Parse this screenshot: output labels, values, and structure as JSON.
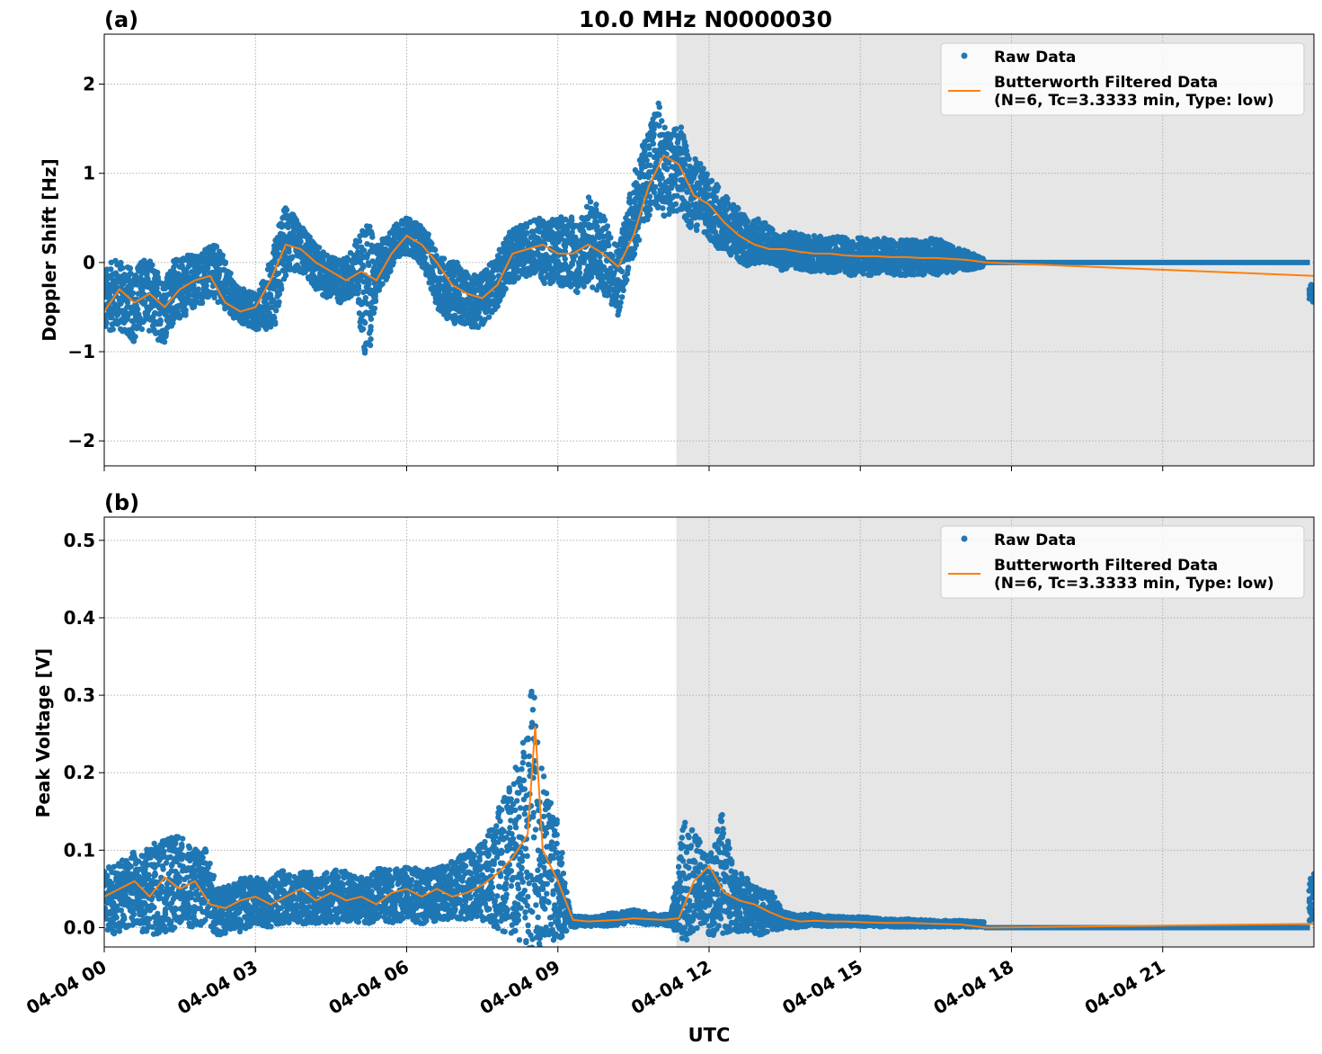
{
  "figure": {
    "title": "10.0 MHz N0000030",
    "xlabel": "UTC"
  },
  "chart_data": [
    {
      "type": "scatter",
      "panel_label": "(a)",
      "ylabel": "Doppler Shift [Hz]",
      "xlim_hours": [
        0,
        24
      ],
      "ylim": [
        -2.28,
        2.56
      ],
      "yticks": [
        -2,
        -1,
        0,
        1,
        2
      ],
      "yticklabels": [
        "−2",
        "−1",
        "0",
        "1",
        "2"
      ],
      "xticks_hours": [
        0,
        3,
        6,
        9,
        12,
        15,
        18,
        21
      ],
      "xticklabels": [],
      "grid": true,
      "legend_position": "top-right",
      "shaded_region_hours": [
        11.35,
        24
      ],
      "colors": {
        "raw": "#1f77b4",
        "filtered": "#ff7f0e",
        "shade": "#e6e6e6"
      },
      "series": [
        {
          "name": "Raw Data",
          "kind": "points",
          "x_hours": [
            0.0,
            0.2,
            0.4,
            0.6,
            0.8,
            1.0,
            1.2,
            1.4,
            1.6,
            1.8,
            2.0,
            2.2,
            2.4,
            2.6,
            2.8,
            3.0,
            3.2,
            3.4,
            3.6,
            3.8,
            4.0,
            4.2,
            4.4,
            4.6,
            4.8,
            5.0,
            5.2,
            5.4,
            5.6,
            5.8,
            6.0,
            6.2,
            6.4,
            6.6,
            6.8,
            7.0,
            7.2,
            7.4,
            7.6,
            7.8,
            8.0,
            8.2,
            8.4,
            8.6,
            8.8,
            9.0,
            9.2,
            9.4,
            9.6,
            9.8,
            10.0,
            10.2,
            10.4,
            10.6,
            10.8,
            11.0,
            11.2,
            11.4,
            11.6,
            11.8,
            12.0,
            12.2,
            12.4,
            12.6,
            12.8,
            13.0,
            13.2,
            13.4,
            13.6,
            13.8,
            14.0,
            14.2,
            14.4,
            14.6,
            14.8,
            15.0,
            15.2,
            15.4,
            15.6,
            15.8,
            16.0,
            16.2,
            16.4,
            16.6,
            16.8,
            17.0,
            17.2,
            17.4,
            18.0,
            19.0,
            20.0,
            21.0,
            22.0,
            23.0,
            24.0
          ],
          "y": [
            -0.45,
            -0.35,
            -0.4,
            -0.5,
            -0.3,
            -0.45,
            -0.55,
            -0.3,
            -0.25,
            -0.2,
            -0.15,
            -0.1,
            -0.25,
            -0.45,
            -0.5,
            -0.55,
            -0.45,
            -0.2,
            0.25,
            0.2,
            0.1,
            -0.05,
            -0.15,
            -0.2,
            -0.2,
            -0.05,
            -0.4,
            -0.1,
            0.05,
            0.25,
            0.3,
            0.25,
            0.1,
            -0.2,
            -0.3,
            -0.35,
            -0.4,
            -0.45,
            -0.35,
            -0.2,
            0.05,
            0.1,
            0.15,
            0.2,
            0.1,
            0.1,
            0.15,
            0.05,
            0.25,
            0.15,
            0.0,
            -0.2,
            0.3,
            0.7,
            1.0,
            1.2,
            0.95,
            1.1,
            0.8,
            0.75,
            0.6,
            0.5,
            0.4,
            0.3,
            0.2,
            0.25,
            0.2,
            0.1,
            0.15,
            0.12,
            0.1,
            0.1,
            0.08,
            0.1,
            0.05,
            0.08,
            0.05,
            0.08,
            0.06,
            0.06,
            0.05,
            0.05,
            0.08,
            0.05,
            0.04,
            0.03,
            0.02,
            0.0,
            0.0,
            0.0,
            0.0,
            0.0,
            0.0,
            0.0,
            -0.35
          ],
          "spread": [
            0.35,
            0.4,
            0.4,
            0.4,
            0.4,
            0.4,
            0.35,
            0.35,
            0.35,
            0.3,
            0.3,
            0.3,
            0.3,
            0.2,
            0.2,
            0.2,
            0.3,
            0.5,
            0.4,
            0.3,
            0.25,
            0.25,
            0.25,
            0.25,
            0.25,
            0.3,
            0.9,
            0.3,
            0.25,
            0.2,
            0.2,
            0.2,
            0.25,
            0.3,
            0.35,
            0.35,
            0.3,
            0.3,
            0.3,
            0.3,
            0.3,
            0.3,
            0.3,
            0.3,
            0.4,
            0.4,
            0.4,
            0.4,
            0.5,
            0.5,
            0.4,
            0.4,
            0.4,
            0.5,
            0.5,
            0.6,
            0.5,
            0.5,
            0.4,
            0.4,
            0.35,
            0.35,
            0.3,
            0.3,
            0.25,
            0.25,
            0.2,
            0.2,
            0.2,
            0.2,
            0.2,
            0.2,
            0.2,
            0.2,
            0.2,
            0.2,
            0.2,
            0.2,
            0.2,
            0.2,
            0.2,
            0.2,
            0.2,
            0.2,
            0.15,
            0.12,
            0.1,
            0.05,
            0.02,
            0.02,
            0.02,
            0.02,
            0.02,
            0.02,
            0.1
          ]
        },
        {
          "name": "Butterworth Filtered Data\n(N=6, Tc=3.3333 min, Type: low)",
          "kind": "line",
          "x_hours": [
            0.0,
            0.3,
            0.6,
            0.9,
            1.2,
            1.5,
            1.8,
            2.1,
            2.4,
            2.7,
            3.0,
            3.3,
            3.6,
            3.9,
            4.2,
            4.5,
            4.8,
            5.1,
            5.4,
            5.7,
            6.0,
            6.3,
            6.6,
            6.9,
            7.2,
            7.5,
            7.8,
            8.1,
            8.4,
            8.7,
            9.0,
            9.3,
            9.6,
            9.9,
            10.2,
            10.5,
            10.8,
            11.1,
            11.4,
            11.7,
            12.0,
            12.3,
            12.6,
            12.9,
            13.2,
            13.5,
            13.8,
            14.1,
            14.4,
            14.7,
            15.0,
            15.3,
            15.6,
            15.9,
            16.2,
            16.5,
            16.8,
            17.1,
            17.5,
            24.0
          ],
          "y": [
            -0.55,
            -0.3,
            -0.45,
            -0.35,
            -0.5,
            -0.3,
            -0.2,
            -0.15,
            -0.45,
            -0.55,
            -0.5,
            -0.2,
            0.2,
            0.15,
            0.0,
            -0.1,
            -0.2,
            -0.1,
            -0.2,
            0.1,
            0.3,
            0.2,
            0.0,
            -0.25,
            -0.35,
            -0.4,
            -0.25,
            0.1,
            0.15,
            0.2,
            0.1,
            0.1,
            0.2,
            0.1,
            -0.05,
            0.3,
            0.85,
            1.2,
            1.1,
            0.75,
            0.65,
            0.45,
            0.3,
            0.2,
            0.15,
            0.15,
            0.12,
            0.1,
            0.1,
            0.08,
            0.07,
            0.07,
            0.06,
            0.06,
            0.05,
            0.05,
            0.04,
            0.03,
            0.0,
            -0.15
          ]
        }
      ],
      "legend": [
        {
          "label": "Raw Data",
          "marker": "dot"
        },
        {
          "label_line1": "Butterworth Filtered Data",
          "label_line2": "(N=6, Tc=3.3333 min, Type: low)",
          "marker": "line"
        }
      ]
    },
    {
      "type": "scatter",
      "panel_label": "(b)",
      "ylabel": "Peak Voltage [V]",
      "xlim_hours": [
        0,
        24
      ],
      "ylim": [
        -0.025,
        0.53
      ],
      "yticks": [
        0.0,
        0.1,
        0.2,
        0.3,
        0.4,
        0.5
      ],
      "yticklabels": [
        "0.0",
        "0.1",
        "0.2",
        "0.3",
        "0.4",
        "0.5"
      ],
      "xticks_hours": [
        0,
        3,
        6,
        9,
        12,
        15,
        18,
        21
      ],
      "xticklabels": [
        "04-04 00",
        "04-04 03",
        "04-04 06",
        "04-04 09",
        "04-04 12",
        "04-04 15",
        "04-04 18",
        "04-04 21"
      ],
      "grid": true,
      "legend_position": "top-right",
      "shaded_region_hours": [
        11.35,
        24
      ],
      "colors": {
        "raw": "#1f77b4",
        "filtered": "#ff7f0e",
        "shade": "#e6e6e6"
      },
      "series": [
        {
          "name": "Raw Data",
          "kind": "points",
          "x_hours": [
            0.0,
            0.25,
            0.5,
            0.75,
            1.0,
            1.25,
            1.5,
            1.75,
            2.0,
            2.25,
            2.5,
            2.75,
            3.0,
            3.25,
            3.5,
            3.75,
            4.0,
            4.25,
            4.5,
            4.75,
            5.0,
            5.25,
            5.5,
            5.75,
            6.0,
            6.25,
            6.5,
            6.75,
            7.0,
            7.25,
            7.5,
            7.75,
            8.0,
            8.25,
            8.5,
            8.75,
            9.0,
            9.25,
            9.5,
            9.75,
            10.0,
            10.25,
            10.5,
            10.75,
            11.0,
            11.25,
            11.5,
            11.75,
            12.0,
            12.25,
            12.5,
            12.75,
            13.0,
            13.25,
            13.5,
            13.75,
            14.0,
            14.5,
            15.0,
            15.5,
            16.0,
            16.5,
            17.0,
            17.5,
            18.0,
            19.0,
            20.0,
            21.0,
            22.0,
            23.0,
            24.0
          ],
          "y": [
            0.04,
            0.035,
            0.05,
            0.045,
            0.05,
            0.055,
            0.06,
            0.05,
            0.055,
            0.02,
            0.025,
            0.03,
            0.035,
            0.03,
            0.04,
            0.035,
            0.04,
            0.035,
            0.04,
            0.04,
            0.035,
            0.035,
            0.045,
            0.04,
            0.045,
            0.04,
            0.04,
            0.045,
            0.05,
            0.055,
            0.06,
            0.07,
            0.09,
            0.1,
            0.12,
            0.09,
            0.06,
            0.008,
            0.008,
            0.008,
            0.01,
            0.012,
            0.015,
            0.012,
            0.01,
            0.01,
            0.06,
            0.06,
            0.04,
            0.07,
            0.035,
            0.03,
            0.02,
            0.02,
            0.01,
            0.008,
            0.01,
            0.008,
            0.008,
            0.006,
            0.006,
            0.005,
            0.005,
            0.004,
            0.0,
            0.0,
            0.0,
            0.0,
            0.0,
            0.0,
            0.04
          ],
          "spread": [
            0.04,
            0.045,
            0.05,
            0.05,
            0.06,
            0.06,
            0.06,
            0.05,
            0.05,
            0.03,
            0.03,
            0.035,
            0.03,
            0.03,
            0.035,
            0.03,
            0.035,
            0.03,
            0.035,
            0.035,
            0.03,
            0.03,
            0.035,
            0.035,
            0.035,
            0.035,
            0.035,
            0.035,
            0.04,
            0.045,
            0.05,
            0.07,
            0.1,
            0.12,
            0.2,
            0.1,
            0.08,
            0.008,
            0.006,
            0.006,
            0.008,
            0.008,
            0.008,
            0.008,
            0.006,
            0.008,
            0.08,
            0.06,
            0.05,
            0.08,
            0.04,
            0.035,
            0.03,
            0.025,
            0.01,
            0.008,
            0.008,
            0.006,
            0.006,
            0.005,
            0.005,
            0.004,
            0.004,
            0.003,
            0.002,
            0.002,
            0.002,
            0.002,
            0.002,
            0.002,
            0.03
          ]
        },
        {
          "name": "Butterworth Filtered Data\n(N=6, Tc=3.3333 min, Type: low)",
          "kind": "line",
          "x_hours": [
            0.0,
            0.3,
            0.6,
            0.9,
            1.2,
            1.5,
            1.8,
            2.1,
            2.4,
            2.7,
            3.0,
            3.3,
            3.6,
            3.9,
            4.2,
            4.5,
            4.8,
            5.1,
            5.4,
            5.7,
            6.0,
            6.3,
            6.6,
            6.9,
            7.2,
            7.5,
            7.8,
            8.1,
            8.4,
            8.55,
            8.7,
            9.0,
            9.3,
            9.6,
            9.9,
            10.2,
            10.5,
            10.8,
            11.1,
            11.4,
            11.7,
            12.0,
            12.3,
            12.6,
            12.9,
            13.2,
            13.5,
            13.8,
            14.1,
            14.4,
            14.7,
            15.0,
            15.5,
            16.0,
            16.5,
            17.0,
            17.5,
            24.0
          ],
          "y": [
            0.04,
            0.05,
            0.06,
            0.04,
            0.065,
            0.05,
            0.06,
            0.03,
            0.025,
            0.035,
            0.04,
            0.03,
            0.04,
            0.05,
            0.035,
            0.045,
            0.035,
            0.04,
            0.03,
            0.045,
            0.05,
            0.04,
            0.05,
            0.04,
            0.045,
            0.055,
            0.07,
            0.09,
            0.12,
            0.26,
            0.1,
            0.06,
            0.01,
            0.008,
            0.009,
            0.01,
            0.012,
            0.011,
            0.01,
            0.012,
            0.06,
            0.08,
            0.045,
            0.035,
            0.03,
            0.02,
            0.012,
            0.008,
            0.009,
            0.008,
            0.008,
            0.007,
            0.006,
            0.006,
            0.005,
            0.004,
            0.0,
            0.005
          ]
        }
      ],
      "legend": [
        {
          "label": "Raw Data",
          "marker": "dot"
        },
        {
          "label_line1": "Butterworth Filtered Data",
          "label_line2": "(N=6, Tc=3.3333 min, Type: low)",
          "marker": "line"
        }
      ]
    }
  ]
}
